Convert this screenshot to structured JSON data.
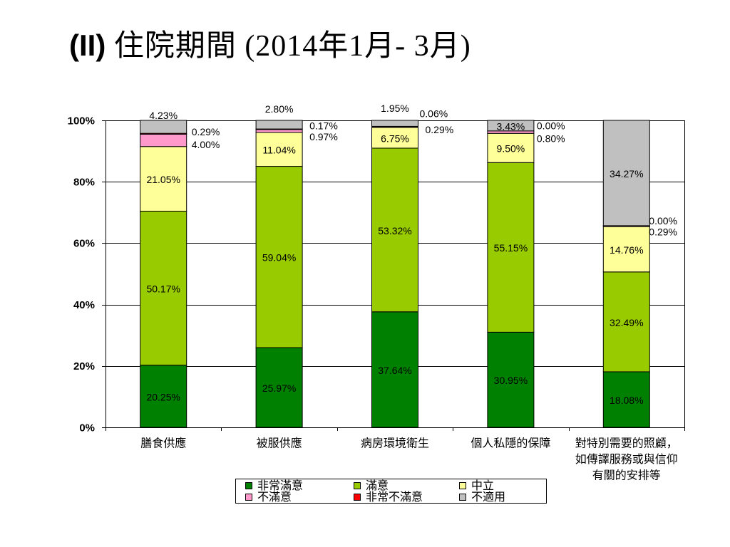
{
  "chart_data": {
    "type": "bar",
    "stacked": true,
    "percent_stacked": true,
    "title": "(II) 住院期間 (2014年1月- 3月)",
    "categories": [
      "膳食供應",
      "被服供應",
      "病房環境衛生",
      "個人私隱的保障",
      "對特別需要的照顧，如傳譯服務或與信仰有關的安排等"
    ],
    "series": [
      {
        "name": "非常滿意",
        "color": "#008000",
        "values": [
          20.25,
          25.97,
          37.64,
          30.95,
          18.08
        ]
      },
      {
        "name": "滿意",
        "color": "#99cc00",
        "values": [
          50.17,
          59.04,
          53.32,
          55.15,
          32.49
        ]
      },
      {
        "name": "中立",
        "color": "#ffff99",
        "values": [
          21.05,
          11.04,
          6.75,
          9.5,
          14.76
        ]
      },
      {
        "name": "不滿意",
        "color": "#ff99cc",
        "values": [
          4.0,
          0.97,
          0.29,
          0.8,
          0.29
        ]
      },
      {
        "name": "非常不滿意",
        "color": "#ff0000",
        "values": [
          0.29,
          0.17,
          0.06,
          0.0,
          0.0
        ]
      },
      {
        "name": "不適用",
        "color": "#c0c0c0",
        "values": [
          4.23,
          2.8,
          1.95,
          3.43,
          34.27
        ]
      }
    ],
    "xlabel": "",
    "ylabel": "",
    "ylim": [
      0,
      100
    ],
    "y_tick_labels": [
      "0%",
      "20%",
      "40%",
      "60%",
      "80%",
      "100%"
    ],
    "grid": true,
    "data_labels": true,
    "legend_position": "bottom"
  }
}
